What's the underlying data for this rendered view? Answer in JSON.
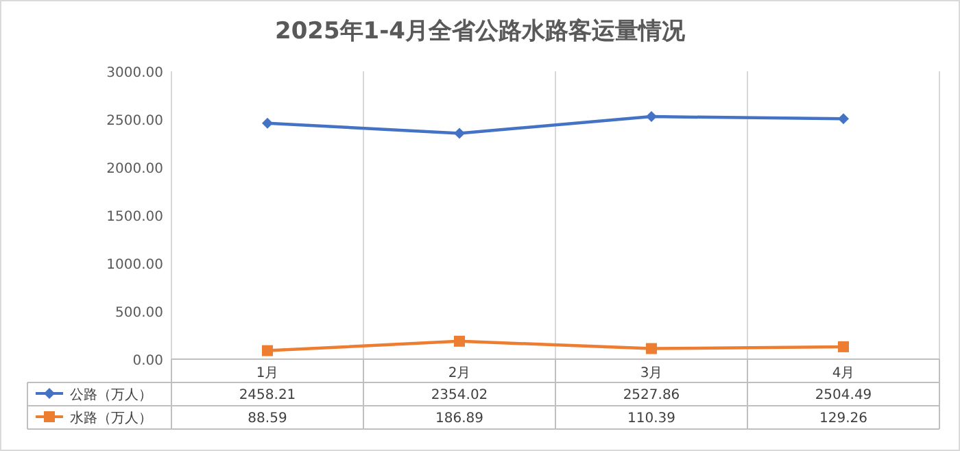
{
  "chart_data": {
    "type": "line",
    "title": "2025年1-4月全省公路水路客运量情况",
    "categories": [
      "1月",
      "2月",
      "3月",
      "4月"
    ],
    "series": [
      {
        "name": "公路（万人）",
        "color": "#4472c4",
        "marker": "diamond",
        "values": [
          2458.21,
          2354.02,
          2527.86,
          2504.49
        ]
      },
      {
        "name": "水路（万人）",
        "color": "#ed7d31",
        "marker": "square",
        "values": [
          88.59,
          186.89,
          110.39,
          129.26
        ]
      }
    ],
    "ylim": [
      0,
      3000
    ],
    "yticks": [
      {
        "value": 0,
        "label": "0.00"
      },
      {
        "value": 500,
        "label": "500.00"
      },
      {
        "value": 1000,
        "label": "1000.00"
      },
      {
        "value": 1500,
        "label": "1500.00"
      },
      {
        "value": 2000,
        "label": "2000.00"
      },
      {
        "value": 2500,
        "label": "2500.00"
      },
      {
        "value": 3000,
        "label": "3000.00"
      }
    ],
    "grid": "x",
    "legend": "bottom",
    "data_labels": true
  }
}
